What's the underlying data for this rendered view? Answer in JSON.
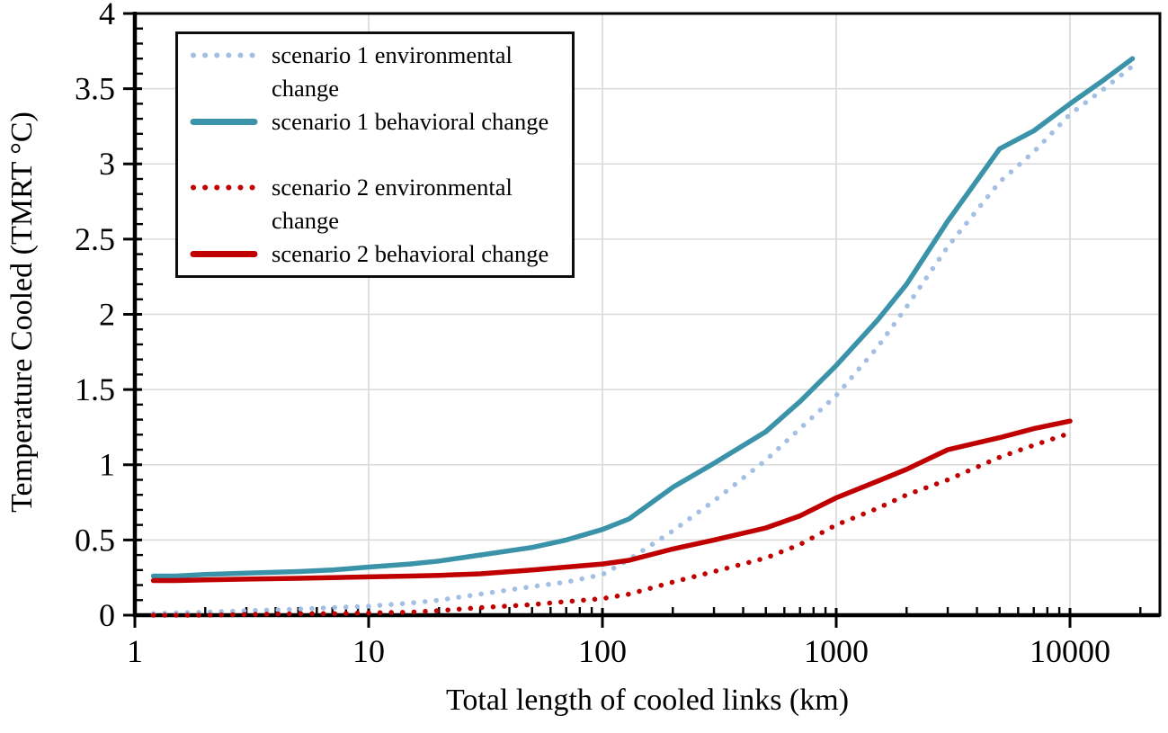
{
  "chart_data": {
    "type": "line",
    "title": "",
    "xlabel": "Total length of cooled links (km)",
    "ylabel": "Temperature Cooled (TMRT °C)",
    "x_scale": "log",
    "xlim": [
      1,
      24000
    ],
    "ylim": [
      0,
      4
    ],
    "grid": true,
    "grid_color": "#D9D9D9",
    "axis_color": "#000000",
    "legend_position": "top-left",
    "x_ticks": [
      1,
      10,
      100,
      1000,
      10000
    ],
    "x_tick_labels": [
      "1",
      "10",
      "100",
      "1000",
      "10000"
    ],
    "y_ticks": [
      0,
      0.5,
      1,
      1.5,
      2,
      2.5,
      3,
      3.5,
      4
    ],
    "y_tick_labels": [
      "0",
      "0.5",
      "1",
      "1.5",
      "2",
      "2.5",
      "3",
      "3.5",
      "4"
    ],
    "y_minor_step": 0.1,
    "series": [
      {
        "name": "scenario 1 environmental change",
        "style": "dotted",
        "color": "#A3BFE3",
        "x": [
          1.2,
          1.5,
          2,
          3,
          5,
          7,
          10,
          15,
          20,
          30,
          50,
          70,
          100,
          130,
          200,
          300,
          500,
          700,
          1000,
          1500,
          2000,
          3000,
          5000,
          7000,
          10000,
          14000,
          18500
        ],
        "y": [
          0.01,
          0.015,
          0.02,
          0.03,
          0.04,
          0.05,
          0.06,
          0.08,
          0.1,
          0.14,
          0.19,
          0.22,
          0.27,
          0.37,
          0.56,
          0.76,
          1.03,
          1.24,
          1.46,
          1.78,
          2.05,
          2.45,
          2.88,
          3.08,
          3.33,
          3.5,
          3.65
        ]
      },
      {
        "name": "scenario 1 behavioral change",
        "style": "solid",
        "color": "#3A93A9",
        "x": [
          1.2,
          1.5,
          2,
          3,
          5,
          7,
          10,
          15,
          20,
          30,
          50,
          70,
          100,
          130,
          200,
          300,
          500,
          700,
          1000,
          1500,
          2000,
          3000,
          5000,
          7000,
          10000,
          14000,
          18500
        ],
        "y": [
          0.26,
          0.26,
          0.27,
          0.28,
          0.29,
          0.3,
          0.32,
          0.34,
          0.36,
          0.4,
          0.45,
          0.5,
          0.57,
          0.64,
          0.85,
          1.01,
          1.22,
          1.42,
          1.66,
          1.96,
          2.2,
          2.62,
          3.1,
          3.22,
          3.4,
          3.56,
          3.7
        ]
      },
      {
        "name": "scenario 2 environmental change",
        "style": "dotted",
        "color": "#C00000",
        "x": [
          1.2,
          1.5,
          2,
          3,
          5,
          7,
          10,
          15,
          20,
          30,
          50,
          70,
          100,
          130,
          200,
          300,
          500,
          700,
          1000,
          1500,
          2000,
          3000,
          5000,
          7000,
          10000
        ],
        "y": [
          0.0,
          0.0,
          0.0,
          0.005,
          0.01,
          0.01,
          0.015,
          0.02,
          0.03,
          0.05,
          0.07,
          0.09,
          0.11,
          0.14,
          0.22,
          0.29,
          0.38,
          0.47,
          0.6,
          0.71,
          0.8,
          0.9,
          1.05,
          1.13,
          1.21
        ]
      },
      {
        "name": "scenario 2 behavioral change",
        "style": "solid",
        "color": "#C00000",
        "x": [
          1.2,
          1.5,
          2,
          3,
          5,
          7,
          10,
          15,
          20,
          30,
          50,
          70,
          100,
          130,
          200,
          300,
          500,
          700,
          1000,
          1500,
          2000,
          3000,
          5000,
          7000,
          10000
        ],
        "y": [
          0.23,
          0.23,
          0.235,
          0.24,
          0.245,
          0.25,
          0.255,
          0.26,
          0.265,
          0.275,
          0.3,
          0.32,
          0.34,
          0.365,
          0.44,
          0.5,
          0.58,
          0.66,
          0.78,
          0.89,
          0.97,
          1.1,
          1.18,
          1.24,
          1.29
        ]
      }
    ]
  }
}
